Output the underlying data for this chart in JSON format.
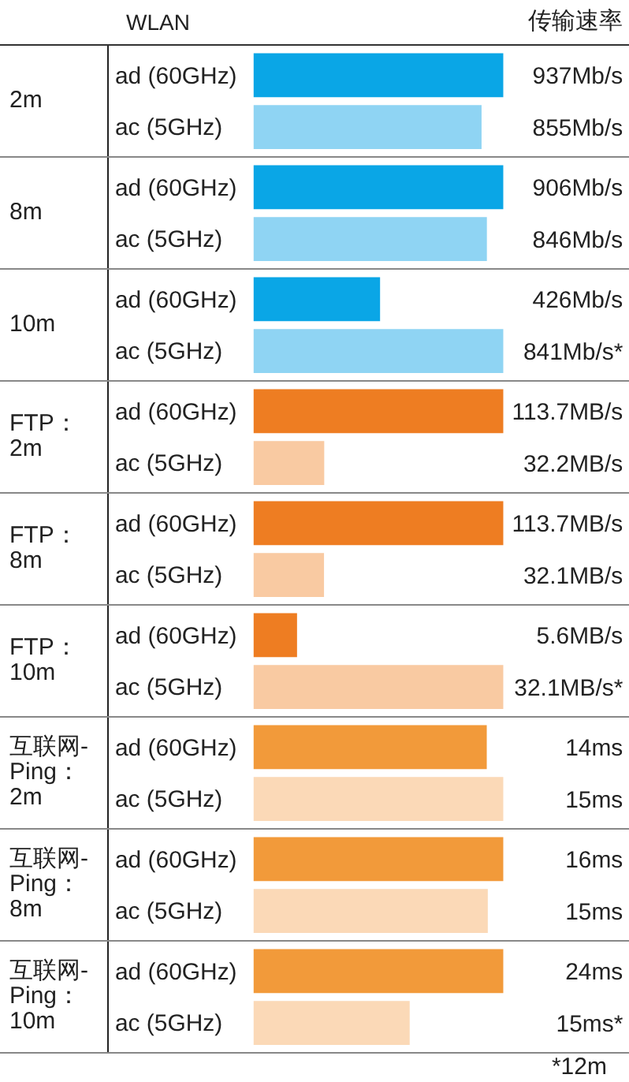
{
  "chart_data": [
    {
      "type": "bar",
      "orientation": "horizontal",
      "title": "2m",
      "ylabel": "WLAN",
      "xlabel": "传输速率",
      "categories": [
        "ad (60GHz)",
        "ac (5GHz)"
      ],
      "values": [
        937,
        855
      ],
      "colors": [
        "#0aa6e6",
        "#8fd4f3"
      ],
      "value_labels": [
        "937Mb/s",
        "855Mb/s"
      ],
      "tick_labels": "y"
    },
    {
      "type": "bar",
      "orientation": "horizontal",
      "title": "8m",
      "categories": [
        "ad (60GHz)",
        "ac (5GHz)"
      ],
      "values": [
        906,
        846
      ],
      "colors": [
        "#0aa6e6",
        "#8fd4f3"
      ],
      "value_labels": [
        "906Mb/s",
        "846Mb/s"
      ],
      "tick_labels": "y"
    },
    {
      "type": "bar",
      "orientation": "horizontal",
      "title": "10m",
      "categories": [
        "ad (60GHz)",
        "ac (5GHz)"
      ],
      "values": [
        426,
        841
      ],
      "colors": [
        "#0aa6e6",
        "#8fd4f3"
      ],
      "value_labels": [
        "426Mb/s",
        "841Mb/s*"
      ],
      "tick_labels": "y"
    },
    {
      "type": "bar",
      "orientation": "horizontal",
      "title": "FTP：2m",
      "categories": [
        "ad (60GHz)",
        "ac (5GHz)"
      ],
      "values": [
        113.7,
        32.2
      ],
      "colors": [
        "#ee7d22",
        "#f9caa2"
      ],
      "value_labels": [
        "113.7MB/s",
        "32.2MB/s"
      ],
      "tick_labels": "y"
    },
    {
      "type": "bar",
      "orientation": "horizontal",
      "title": "FTP：8m",
      "categories": [
        "ad (60GHz)",
        "ac (5GHz)"
      ],
      "values": [
        113.7,
        32.1
      ],
      "colors": [
        "#ee7d22",
        "#f9caa2"
      ],
      "value_labels": [
        "113.7MB/s",
        "32.1MB/s"
      ],
      "tick_labels": "y"
    },
    {
      "type": "bar",
      "orientation": "horizontal",
      "title": "FTP：10m",
      "categories": [
        "ad (60GHz)",
        "ac (5GHz)"
      ],
      "values": [
        5.6,
        32.1
      ],
      "colors": [
        "#ee7d22",
        "#f9caa2"
      ],
      "value_labels": [
        "5.6MB/s",
        "32.1MB/s*"
      ],
      "tick_labels": "y"
    },
    {
      "type": "bar",
      "orientation": "horizontal",
      "title": "互联网-Ping：2m",
      "categories": [
        "ad (60GHz)",
        "ac (5GHz)"
      ],
      "values": [
        14,
        15
      ],
      "colors": [
        "#f29a3a",
        "#fbd9b7"
      ],
      "value_labels": [
        "14ms",
        "15ms"
      ],
      "tick_labels": "y"
    },
    {
      "type": "bar",
      "orientation": "horizontal",
      "title": "互联网-Ping：8m",
      "categories": [
        "ad (60GHz)",
        "ac (5GHz)"
      ],
      "values": [
        16,
        15
      ],
      "colors": [
        "#f29a3a",
        "#fbd9b7"
      ],
      "value_labels": [
        "16ms",
        "15ms"
      ],
      "tick_labels": "y"
    },
    {
      "type": "bar",
      "orientation": "horizontal",
      "title": "互联网-Ping：10m",
      "categories": [
        "ad (60GHz)",
        "ac (5GHz)"
      ],
      "values": [
        24,
        15
      ],
      "colors": [
        "#f29a3a",
        "#fbd9b7"
      ],
      "value_labels": [
        "24ms",
        "15ms*"
      ],
      "tick_labels": "y",
      "annotations": [
        "*12m"
      ]
    }
  ]
}
